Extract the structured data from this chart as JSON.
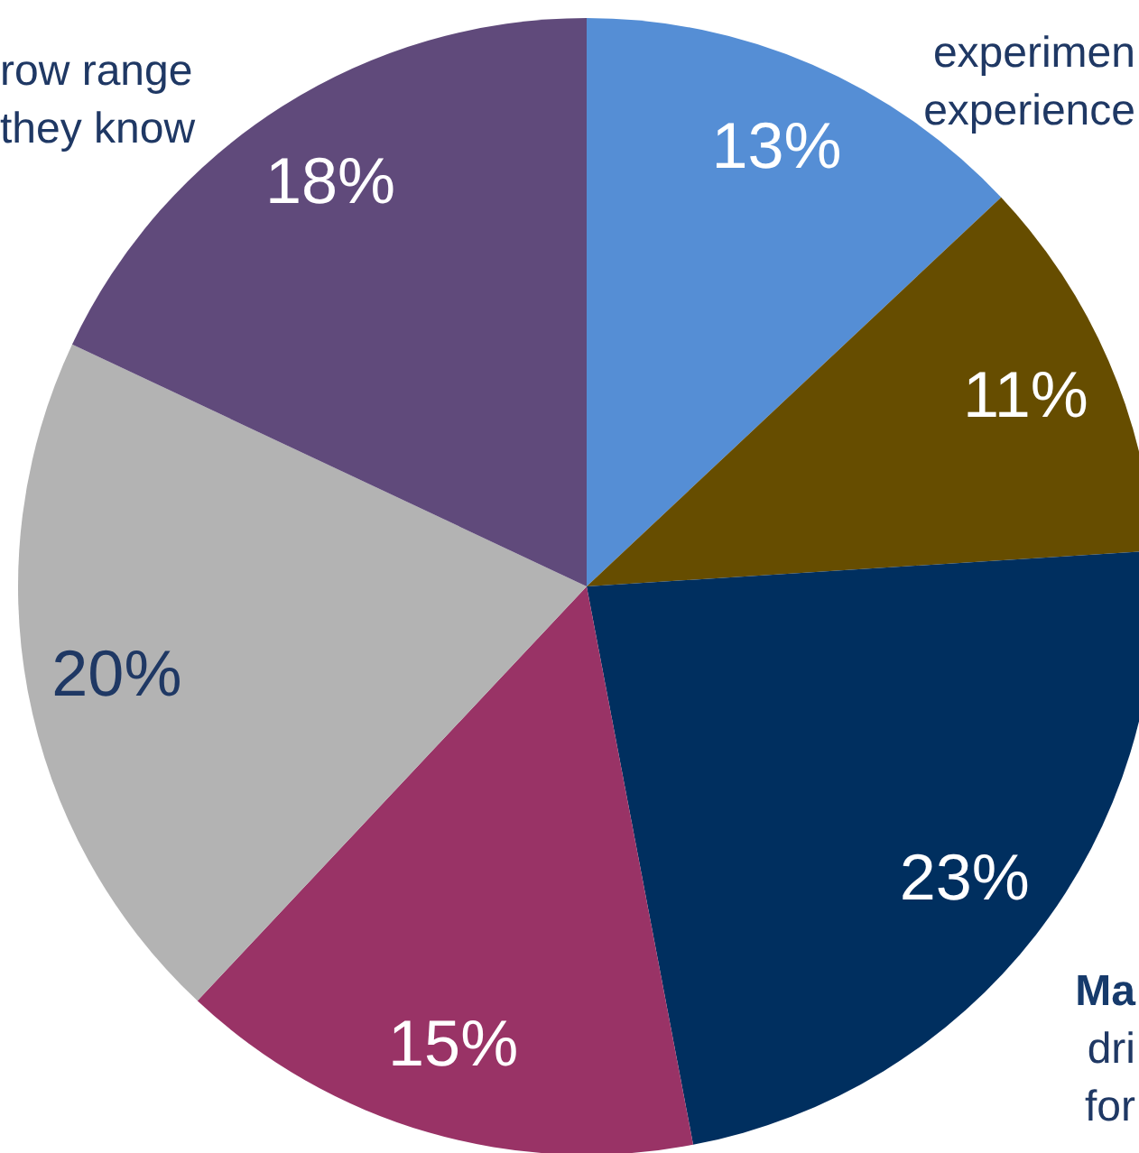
{
  "chart_data": {
    "type": "pie",
    "categories": [
      null,
      null,
      null,
      null,
      null,
      null
    ],
    "values": [
      13,
      11,
      23,
      15,
      20,
      18
    ],
    "colors": [
      "#558ed5",
      "#664d00",
      "#002f5f",
      "#993366",
      "#b3b3b3",
      "#604a7b"
    ],
    "value_labels": [
      "13%",
      "11%",
      "23%",
      "15%",
      "20%",
      "18%"
    ],
    "annotations": [
      "row range\nthey know",
      "experimen\nexperience",
      "Ma\ndri\nfor"
    ]
  }
}
